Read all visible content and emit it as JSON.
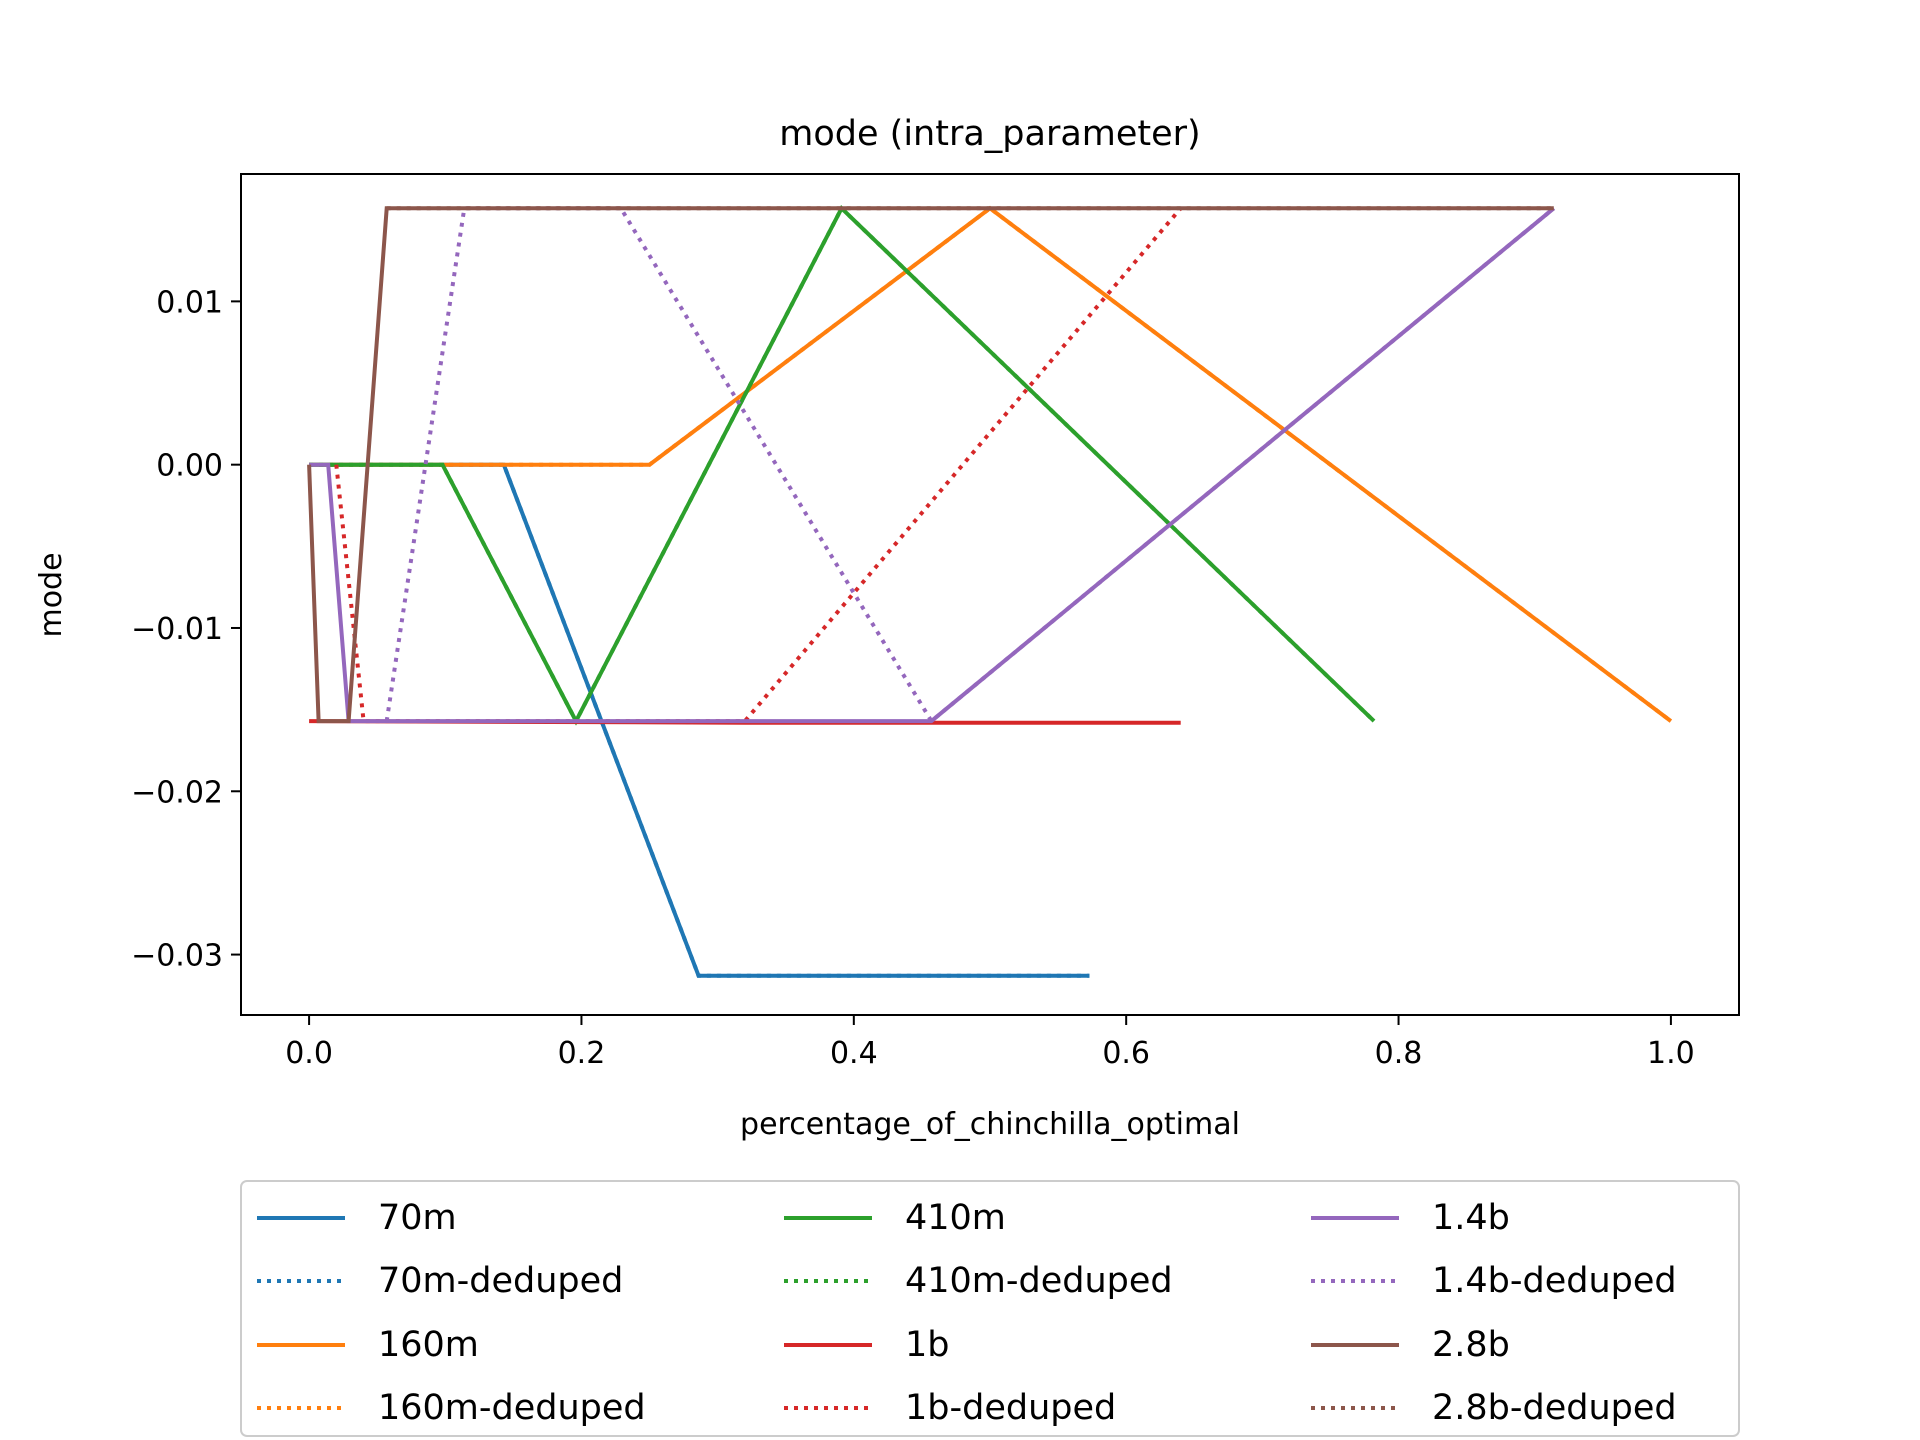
{
  "chart_data": {
    "type": "line",
    "title": "mode (intra_parameter)",
    "xlabel": "percentage_of_chinchilla_optimal",
    "ylabel": "mode",
    "xlim": [
      -0.05,
      1.05
    ],
    "ylim": [
      -0.0337,
      0.0178
    ],
    "xticks": [
      0.0,
      0.2,
      0.4,
      0.6,
      0.8,
      1.0
    ],
    "xtick_labels": [
      "0.0",
      "0.2",
      "0.4",
      "0.6",
      "0.8",
      "1.0"
    ],
    "yticks": [
      0.01,
      0.0,
      -0.01,
      -0.02,
      -0.03
    ],
    "ytick_labels": [
      "0.01",
      "0.00",
      "−0.01",
      "−0.02",
      "−0.03"
    ],
    "grid": false,
    "legend_placement": "below",
    "series": [
      {
        "name": "70m",
        "color": "#1f77b4",
        "dash": "solid",
        "x": [
          0.0,
          0.143,
          0.286,
          0.573
        ],
        "y": [
          0.0,
          0.0,
          -0.0313,
          -0.0313
        ]
      },
      {
        "name": "70m-deduped",
        "color": "#1f77b4",
        "dash": "dotted",
        "x": [
          0.0,
          0.143,
          0.286,
          0.573
        ],
        "y": [
          0.0,
          0.0,
          -0.0313,
          -0.0313
        ]
      },
      {
        "name": "160m",
        "color": "#ff7f0e",
        "dash": "solid",
        "x": [
          0.0,
          0.25,
          0.5,
          1.0
        ],
        "y": [
          0.0,
          0.0,
          0.0157,
          -0.0157
        ]
      },
      {
        "name": "160m-deduped",
        "color": "#ff7f0e",
        "dash": "dotted",
        "x": [
          0.0,
          0.25,
          0.5,
          1.0
        ],
        "y": [
          0.0,
          0.0,
          0.0157,
          -0.0157
        ]
      },
      {
        "name": "410m",
        "color": "#2ca02c",
        "dash": "solid",
        "x": [
          0.0,
          0.098,
          0.196,
          0.391,
          0.782
        ],
        "y": [
          0.0,
          0.0,
          -0.0157,
          0.0157,
          -0.0157
        ]
      },
      {
        "name": "410m-deduped",
        "color": "#2ca02c",
        "dash": "dotted",
        "x": [
          0.0,
          0.098,
          0.196,
          0.391,
          0.782
        ],
        "y": [
          0.0,
          0.0,
          -0.0157,
          0.0157,
          -0.0157
        ]
      },
      {
        "name": "1b",
        "color": "#d62728",
        "dash": "solid",
        "x": [
          0.0,
          0.32,
          0.64
        ],
        "y": [
          -0.0157,
          -0.0158,
          -0.0158
        ]
      },
      {
        "name": "1b-deduped",
        "color": "#d62728",
        "dash": "dotted",
        "x": [
          0.02,
          0.04,
          0.32,
          0.64
        ],
        "y": [
          0.0,
          -0.0157,
          -0.0157,
          0.0157
        ]
      },
      {
        "name": "1.4b",
        "color": "#9467bd",
        "dash": "solid",
        "x": [
          0.0,
          0.014,
          0.029,
          0.457,
          0.914
        ],
        "y": [
          0.0,
          0.0,
          -0.0157,
          -0.0157,
          0.0157
        ]
      },
      {
        "name": "1.4b-deduped",
        "color": "#9467bd",
        "dash": "dotted",
        "x": [
          0.057,
          0.114,
          0.229,
          0.457,
          0.914
        ],
        "y": [
          -0.0157,
          0.0157,
          0.0157,
          -0.0157,
          0.0157
        ]
      },
      {
        "name": "2.8b",
        "color": "#8c564b",
        "dash": "solid",
        "x": [
          0.0,
          0.007,
          0.029,
          0.057,
          0.914
        ],
        "y": [
          0.0,
          -0.0157,
          -0.0157,
          0.0157,
          0.0157
        ]
      },
      {
        "name": "2.8b-deduped",
        "color": "#8c564b",
        "dash": "dotted",
        "x": [
          0.057,
          0.914
        ],
        "y": [
          0.0157,
          0.0157
        ]
      }
    ]
  }
}
